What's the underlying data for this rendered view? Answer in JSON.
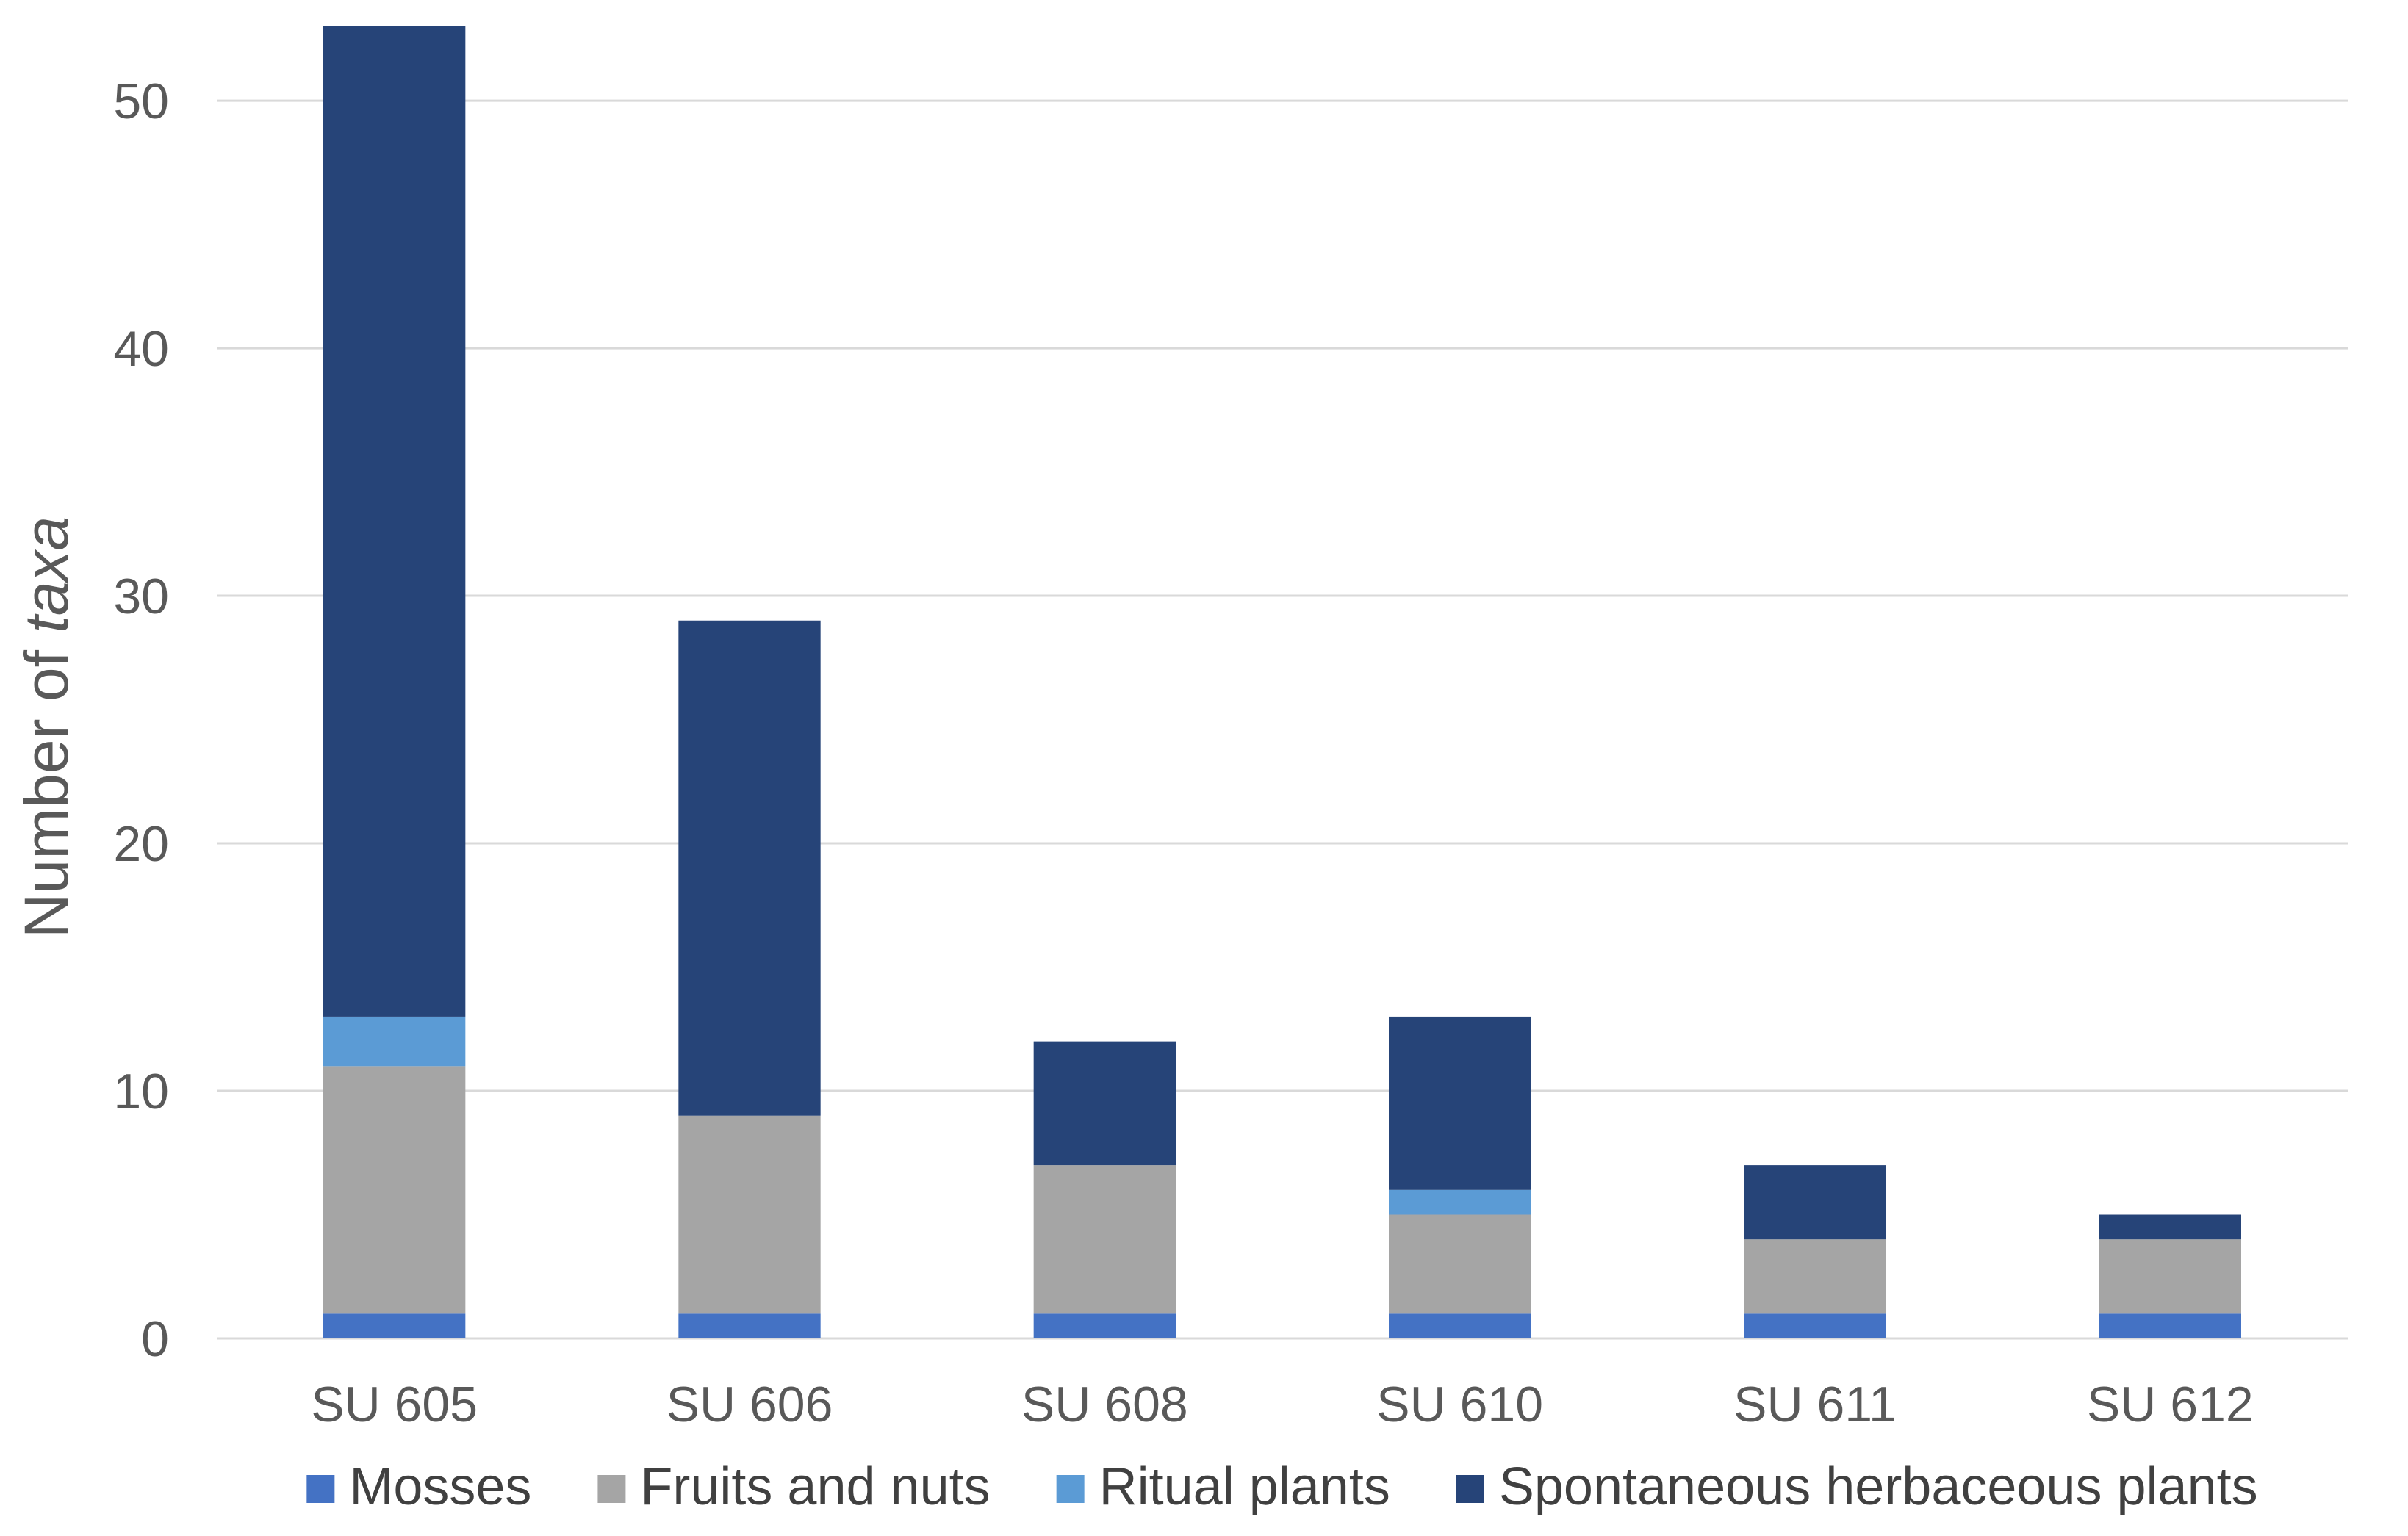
{
  "chart_data": {
    "type": "bar",
    "stacked": true,
    "title": "",
    "xlabel": "",
    "ylabel_prefix": "Number of ",
    "ylabel_italic": "taxa",
    "ylim": [
      0,
      53
    ],
    "yticks": [
      0,
      10,
      20,
      30,
      40,
      50
    ],
    "ytick_labels": [
      "0",
      "10",
      "20",
      "30",
      "40",
      "50"
    ],
    "grid": true,
    "legend_position": "bottom",
    "categories": [
      "SU 605",
      "SU 606",
      "SU 608",
      "SU 610",
      "SU 611",
      "SU 612"
    ],
    "series": [
      {
        "name": "Mosses",
        "color": "#4472c4",
        "values": [
          1,
          1,
          1,
          1,
          1,
          1
        ]
      },
      {
        "name": "Fruits and nuts",
        "color": "#a5a5a5",
        "values": [
          10,
          8,
          6,
          4,
          3,
          3
        ]
      },
      {
        "name": "Ritual plants",
        "color": "#5b9bd5",
        "values": [
          2,
          0,
          0,
          1,
          0,
          0
        ]
      },
      {
        "name": "Spontaneous herbaceous plants",
        "color": "#264478",
        "values": [
          40,
          20,
          5,
          7,
          3,
          1
        ]
      }
    ]
  }
}
